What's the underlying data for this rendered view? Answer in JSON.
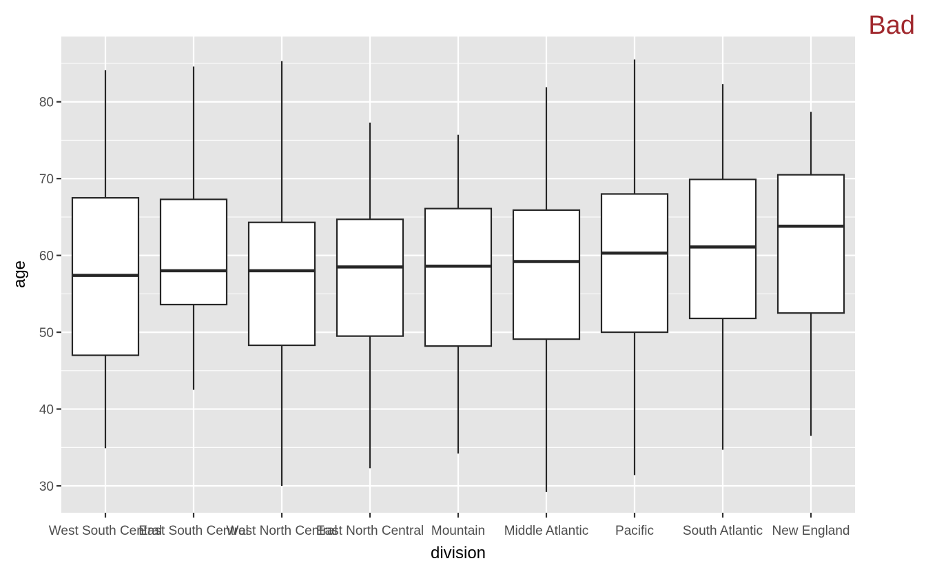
{
  "badge": {
    "text": "Bad",
    "color": "#a0282d"
  },
  "colors": {
    "panel": "#e5e5e5",
    "grid": "#ffffff",
    "box_fill": "#ffffff",
    "box_stroke": "#262626"
  },
  "chart_data": {
    "type": "boxplot",
    "title": "",
    "xlabel": "division",
    "ylabel": "age",
    "ylim": [
      26.5,
      88.5
    ],
    "yticks": [
      30,
      40,
      50,
      60,
      70,
      80
    ],
    "grid": true,
    "legend": "none",
    "categories": [
      "West South Central",
      "East South Central",
      "West North Central",
      "East North Central",
      "Mountain",
      "Middle Atlantic",
      "Pacific",
      "South Atlantic",
      "New England"
    ],
    "boxes": [
      {
        "min": 34.9,
        "q1": 47.0,
        "median": 57.4,
        "q3": 67.5,
        "max": 84.1
      },
      {
        "min": 42.5,
        "q1": 53.6,
        "median": 58.0,
        "q3": 67.3,
        "max": 84.6
      },
      {
        "min": 30.0,
        "q1": 48.3,
        "median": 58.0,
        "q3": 64.3,
        "max": 85.3
      },
      {
        "min": 32.3,
        "q1": 49.5,
        "median": 58.5,
        "q3": 64.7,
        "max": 77.3
      },
      {
        "min": 34.2,
        "q1": 48.2,
        "median": 58.6,
        "q3": 66.1,
        "max": 75.7
      },
      {
        "min": 29.2,
        "q1": 49.1,
        "median": 59.2,
        "q3": 65.9,
        "max": 81.9
      },
      {
        "min": 31.4,
        "q1": 50.0,
        "median": 60.3,
        "q3": 68.0,
        "max": 85.5
      },
      {
        "min": 34.7,
        "q1": 51.8,
        "median": 61.1,
        "q3": 69.9,
        "max": 82.3
      },
      {
        "min": 36.5,
        "q1": 52.5,
        "median": 63.8,
        "q3": 70.5,
        "max": 78.7
      }
    ]
  }
}
